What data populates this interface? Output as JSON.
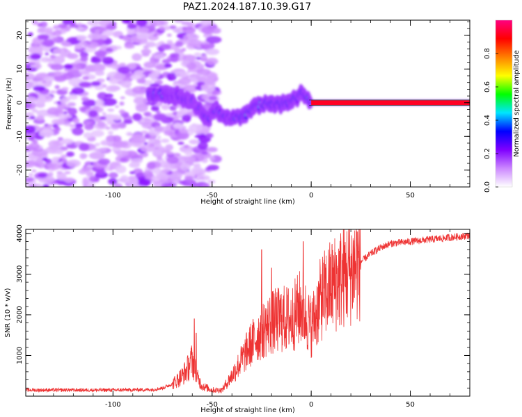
{
  "title": "PAZ1.2024.187.10.39.G17",
  "chart_data": [
    {
      "type": "heatmap",
      "xlabel": "Height of straight line (km)",
      "ylabel": "Frequency (Hz)",
      "xlim": [
        -144,
        80
      ],
      "ylim": [
        -25,
        24.5
      ],
      "xticks": [
        -100,
        -50,
        0,
        50
      ],
      "yticks": [
        -20,
        -10,
        0,
        10,
        20
      ],
      "colorbar": {
        "label": "Normalized spectral amplitude",
        "range": [
          0,
          1
        ],
        "ticks": [
          0.0,
          0.2,
          0.4,
          0.6,
          0.8
        ],
        "colormap": [
          "#ffffff",
          "#cc88ff",
          "#8000ff",
          "#0000ff",
          "#00e5ff",
          "#00ff00",
          "#ffff00",
          "#ff8000",
          "#ff0000",
          "#ff0080"
        ]
      },
      "ridge": {
        "x": [
          -82,
          -75,
          -68,
          -62,
          -58,
          -55,
          -52,
          -48,
          -45,
          -40,
          -35,
          -30,
          -28,
          -25,
          -20,
          -15,
          -10,
          -7,
          -5,
          -3,
          0,
          5,
          10,
          20,
          30,
          40,
          60,
          80
        ],
        "y": [
          2.5,
          2.5,
          2,
          1,
          -1,
          -3,
          -5,
          -2,
          -4,
          -4.5,
          -4,
          -2,
          -1,
          -0.5,
          0,
          -0.5,
          0.5,
          1.5,
          3,
          2,
          0,
          0,
          0,
          0,
          0,
          0,
          0,
          0
        ]
      },
      "noise_band": {
        "x_end": -50,
        "freq_range": [
          -25,
          24.5
        ]
      }
    },
    {
      "type": "line",
      "xlabel": "Height of straight line (km)",
      "ylabel": "SNR (10 * v/v)",
      "xlim": [
        -144,
        80
      ],
      "ylim": [
        0,
        4100
      ],
      "xticks": [
        -100,
        -50,
        0,
        50
      ],
      "yticks": [
        1000,
        2000,
        3000,
        4000
      ],
      "series": [
        {
          "color": "#ee3333",
          "x": [
            -144,
            -120,
            -100,
            -80,
            -75,
            -70,
            -65,
            -62,
            -60,
            -58,
            -55,
            -50,
            -45,
            -40,
            -35,
            -30,
            -25,
            -20,
            -15,
            -10,
            -5,
            0,
            5,
            10,
            15,
            20,
            25,
            30,
            35,
            40,
            50,
            60,
            70,
            80
          ],
          "y": [
            150,
            150,
            150,
            160,
            200,
            300,
            500,
            700,
            900,
            500,
            250,
            150,
            150,
            500,
            900,
            1300,
            1600,
            1800,
            1900,
            1900,
            2200,
            1700,
            2400,
            2700,
            2900,
            3100,
            3300,
            3500,
            3650,
            3750,
            3800,
            3850,
            3900,
            3950
          ]
        }
      ],
      "spikes": [
        {
          "x": -59,
          "y": 1900
        },
        {
          "x": -58,
          "y": 1550
        },
        {
          "x": -25,
          "y": 3600
        },
        {
          "x": -20,
          "y": 3150
        },
        {
          "x": -4,
          "y": 3800
        }
      ]
    }
  ]
}
